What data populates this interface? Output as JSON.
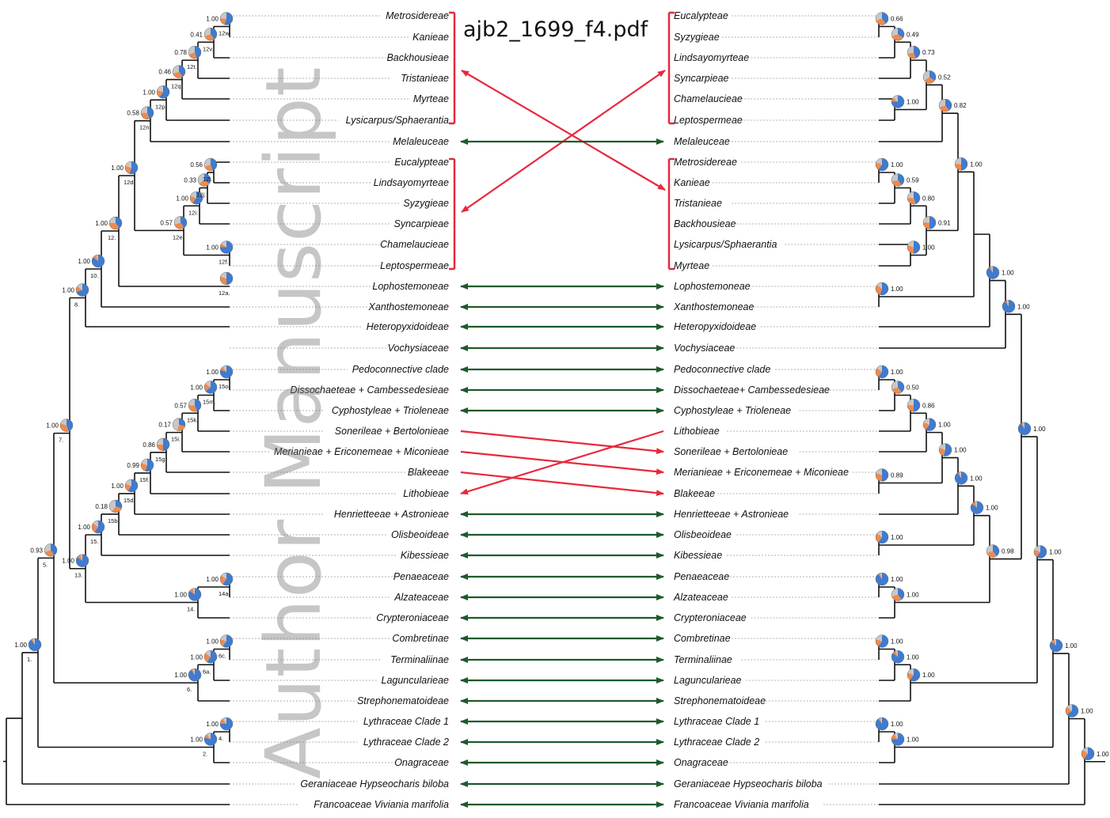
{
  "file_title": "ajb2_1699_f4.pdf",
  "watermark": "Author Manuscript",
  "colors": {
    "branch": "#111111",
    "leader": "#666666",
    "match_arrow": "#1e5a2b",
    "conflict_arrow": "#e8283c",
    "pie_blue": "#3f7bd0",
    "pie_orange": "#f08a4b",
    "pie_grey": "#c8c8c8",
    "pie_dark": "#1c3a6b"
  },
  "left_tree": {
    "taxa": [
      "Metrosidereae",
      "Kanieae",
      "Backhousieae",
      "Tristanieae",
      "Myrteae",
      "Lysicarpus/Sphaerantia",
      "Melaleuceae",
      "Eucalypteae",
      "Lindsayomyrteae",
      "Syzygieae",
      "Syncarpieae",
      "Chamelaucieae",
      "Leptospermeae",
      "Lophostemoneae",
      "Xanthostemoneae",
      "Heteropyxidoideae",
      "Vochysiaceae",
      "Pedoconnective clade",
      "Dissochaeteae + Cambessedesieae",
      "Cyphostyleae + Trioleneae",
      "Sonerileae + Bertolonieae",
      "Merianieae + Ericonemeae + Miconieae",
      "Blakeeae",
      "Lithobieae",
      "Henrietteeae + Astronieae",
      "Olisbeoideae",
      "Kibessieae",
      "Penaeaceae",
      "Alzateaceae",
      "Crypteroniaceae",
      "Combretinae",
      "Terminaliinae",
      "Laguncularieae",
      "Strephonematoideae",
      "Lythraceae Clade 1",
      "Lythraceae Clade 2",
      "Onagraceae",
      "Geraniaceae Hypseocharis biloba",
      "Francoaceae Viviania marifolia"
    ],
    "nodes": [
      {
        "value": "1.00",
        "label": "12w.",
        "pie": [
          0.55,
          0.2,
          0.25
        ]
      },
      {
        "value": "0.41",
        "label": "12v.",
        "pie": [
          0.4,
          0.3,
          0.3
        ]
      },
      {
        "value": "0.78",
        "label": "12t.",
        "pie": [
          0.45,
          0.25,
          0.3
        ]
      },
      {
        "value": "0.46",
        "label": "12q.",
        "pie": [
          0.4,
          0.3,
          0.3
        ]
      },
      {
        "value": "1.00",
        "label": "12p.",
        "pie": [
          0.6,
          0.2,
          0.2
        ]
      },
      {
        "value": "0.58",
        "label": "12n.",
        "pie": [
          0.45,
          0.3,
          0.25
        ]
      },
      {
        "value": "1.00",
        "label": "12d.",
        "pie": [
          0.55,
          0.25,
          0.2
        ]
      },
      {
        "value": "0.56",
        "label": "12l.",
        "pie": [
          0.45,
          0.25,
          0.3
        ]
      },
      {
        "value": "0.33",
        "label": "12j.",
        "pie": [
          0.35,
          0.3,
          0.35
        ]
      },
      {
        "value": "1.00",
        "label": "12i.",
        "pie": [
          0.6,
          0.2,
          0.2
        ]
      },
      {
        "value": "0.57",
        "label": "12e.",
        "pie": [
          0.4,
          0.3,
          0.3
        ]
      },
      {
        "value": "1.00",
        "label": "12f.",
        "pie": [
          0.75,
          0.1,
          0.15
        ]
      },
      {
        "value": "1.00",
        "label": "12.",
        "pie": [
          0.4,
          0.35,
          0.25
        ]
      },
      {
        "value": "",
        "label": "12a.",
        "pie": [
          0.5,
          0.3,
          0.2
        ]
      },
      {
        "value": "1.00",
        "label": "10.",
        "pie": [
          0.85,
          0.1,
          0.05
        ]
      },
      {
        "value": "1.00",
        "label": "8.",
        "pie": [
          0.7,
          0.15,
          0.15
        ]
      },
      {
        "value": "1.00",
        "label": "15o.",
        "pie": [
          0.8,
          0.1,
          0.1
        ]
      },
      {
        "value": "1.00",
        "label": "15m.",
        "pie": [
          0.65,
          0.2,
          0.15
        ]
      },
      {
        "value": "0.57",
        "label": "15k.",
        "pie": [
          0.45,
          0.3,
          0.25
        ]
      },
      {
        "value": "0.17",
        "label": "15i.",
        "pie": [
          0.3,
          0.25,
          0.45
        ]
      },
      {
        "value": "0.86",
        "label": "15g.",
        "pie": [
          0.5,
          0.25,
          0.25
        ]
      },
      {
        "value": "0.99",
        "label": "15f.",
        "pie": [
          0.55,
          0.25,
          0.2
        ]
      },
      {
        "value": "1.00",
        "label": "15d.",
        "pie": [
          0.6,
          0.2,
          0.2
        ]
      },
      {
        "value": "0.18",
        "label": "15b.",
        "pie": [
          0.3,
          0.3,
          0.4
        ]
      },
      {
        "value": "1.00",
        "label": "15.",
        "pie": [
          0.6,
          0.25,
          0.15
        ]
      },
      {
        "value": "1.00",
        "label": "7.",
        "pie": [
          0.45,
          0.35,
          0.2
        ]
      },
      {
        "value": "1.00",
        "label": "13.",
        "pie": [
          0.85,
          0.1,
          0.05
        ]
      },
      {
        "value": "0.93",
        "label": "5.",
        "pie": [
          0.4,
          0.3,
          0.3
        ]
      },
      {
        "value": "1.00",
        "label": "14a.",
        "pie": [
          0.6,
          0.25,
          0.15
        ]
      },
      {
        "value": "1.00",
        "label": "14.",
        "pie": [
          0.85,
          0.1,
          0.05
        ]
      },
      {
        "value": "1.00",
        "label": "6c.",
        "pie": [
          0.6,
          0.2,
          0.2
        ]
      },
      {
        "value": "1.00",
        "label": "6a.",
        "pie": [
          0.6,
          0.25,
          0.15
        ]
      },
      {
        "value": "1.00",
        "label": "6.",
        "pie": [
          0.9,
          0.05,
          0.05
        ]
      },
      {
        "value": "1.00",
        "label": "4.",
        "pie": [
          0.75,
          0.15,
          0.1
        ]
      },
      {
        "value": "1.00",
        "label": "2.",
        "pie": [
          0.8,
          0.1,
          0.1
        ]
      },
      {
        "value": "1.00",
        "label": "1.",
        "pie": [
          0.9,
          0.05,
          0.05
        ]
      }
    ]
  },
  "right_tree": {
    "taxa": [
      "Eucalypteae",
      "Syzygieae",
      "Lindsayomyrteae",
      "Syncarpieae",
      "Chamelaucieae",
      "Leptospermeae",
      "Melaleuceae",
      "Metrosidereae",
      "Kanieae",
      "Tristanieae",
      "Backhousieae",
      "Lysicarpus/Sphaerantia",
      "Myrteae",
      "Lophostemoneae",
      "Xanthostemoneae",
      "Heteropyxidoideae",
      "Vochysiaceae",
      "Pedoconnective clade",
      "Dissochaeteae+ Cambessedesieae",
      "Cyphostyleae + Trioleneae",
      "Lithobieae",
      "Sonerileae + Bertolonieae",
      "Merianieae + Ericonemeae + Miconieae",
      "Blakeeae",
      "Henrietteeae + Astronieae",
      "Olisbeoideae",
      "Kibessieae",
      "Penaeaceae",
      "Alzateaceae",
      "Crypteroniaceae",
      "Combretinae",
      "Terminaliinae",
      "Laguncularieae",
      "Strephonematoideae",
      "Lythraceae Clade 1",
      "Lythraceae Clade 2",
      "Onagraceae",
      "Geraniaceae Hypseocharis biloba",
      "Francoaceae Viviania marifolia"
    ],
    "nodes": [
      {
        "value": "0.66",
        "pie": [
          0.4,
          0.3,
          0.3
        ]
      },
      {
        "value": "0.49",
        "pie": [
          0.35,
          0.35,
          0.3
        ]
      },
      {
        "value": "0.73",
        "pie": [
          0.45,
          0.25,
          0.3
        ]
      },
      {
        "value": "0.52",
        "pie": [
          0.35,
          0.3,
          0.35
        ]
      },
      {
        "value": "1.00",
        "pie": [
          0.75,
          0.1,
          0.15
        ]
      },
      {
        "value": "0.82",
        "pie": [
          0.4,
          0.3,
          0.3
        ]
      },
      {
        "value": "1.00",
        "pie": [
          0.5,
          0.25,
          0.25
        ]
      },
      {
        "value": "1.00",
        "pie": [
          0.6,
          0.2,
          0.2
        ]
      },
      {
        "value": "0.59",
        "pie": [
          0.4,
          0.3,
          0.3
        ]
      },
      {
        "value": "0.80",
        "pie": [
          0.45,
          0.3,
          0.25
        ]
      },
      {
        "value": "0.91",
        "pie": [
          0.5,
          0.25,
          0.25
        ]
      },
      {
        "value": "1.00",
        "pie": [
          0.5,
          0.3,
          0.2
        ]
      },
      {
        "value": "1.00",
        "pie": [
          0.9,
          0.05,
          0.05
        ]
      },
      {
        "value": "1.00",
        "pie": [
          0.55,
          0.3,
          0.15
        ]
      },
      {
        "value": "1.00",
        "pie": [
          0.9,
          0.05,
          0.05
        ]
      },
      {
        "value": "1.00",
        "pie": [
          0.9,
          0.05,
          0.05
        ]
      },
      {
        "value": "1.00",
        "pie": [
          0.6,
          0.25,
          0.15
        ]
      },
      {
        "value": "0.50",
        "pie": [
          0.4,
          0.3,
          0.3
        ]
      },
      {
        "value": "0.86",
        "pie": [
          0.5,
          0.25,
          0.25
        ]
      },
      {
        "value": "1.00",
        "pie": [
          0.6,
          0.2,
          0.2
        ]
      },
      {
        "value": "1.00",
        "pie": [
          0.55,
          0.25,
          0.2
        ]
      },
      {
        "value": "0.89",
        "pie": [
          0.5,
          0.3,
          0.2
        ]
      },
      {
        "value": "1.00",
        "pie": [
          0.9,
          0.05,
          0.05
        ]
      },
      {
        "value": "1.00",
        "pie": [
          0.85,
          0.1,
          0.05
        ]
      },
      {
        "value": "1.00",
        "pie": [
          0.6,
          0.25,
          0.15
        ]
      },
      {
        "value": "1.00",
        "pie": [
          0.9,
          0.05,
          0.05
        ]
      },
      {
        "value": "1.00",
        "pie": [
          0.4,
          0.3,
          0.3
        ]
      },
      {
        "value": "0.98",
        "pie": [
          0.4,
          0.3,
          0.3
        ]
      },
      {
        "value": "1.00",
        "pie": [
          0.6,
          0.2,
          0.2
        ]
      },
      {
        "value": "1.00",
        "pie": [
          0.85,
          0.1,
          0.05
        ]
      },
      {
        "value": "1.00",
        "pie": [
          0.6,
          0.2,
          0.2
        ]
      },
      {
        "value": "1.00",
        "pie": [
          0.6,
          0.2,
          0.2
        ]
      },
      {
        "value": "1.00",
        "pie": [
          0.65,
          0.2,
          0.15
        ]
      },
      {
        "value": "1.00",
        "pie": [
          0.85,
          0.1,
          0.05
        ]
      },
      {
        "value": "1.00",
        "pie": [
          0.9,
          0.05,
          0.05
        ]
      },
      {
        "value": "1.00",
        "pie": [
          0.75,
          0.15,
          0.1
        ]
      },
      {
        "value": "1.00",
        "pie": [
          0.6,
          0.25,
          0.15
        ]
      }
    ]
  }
}
